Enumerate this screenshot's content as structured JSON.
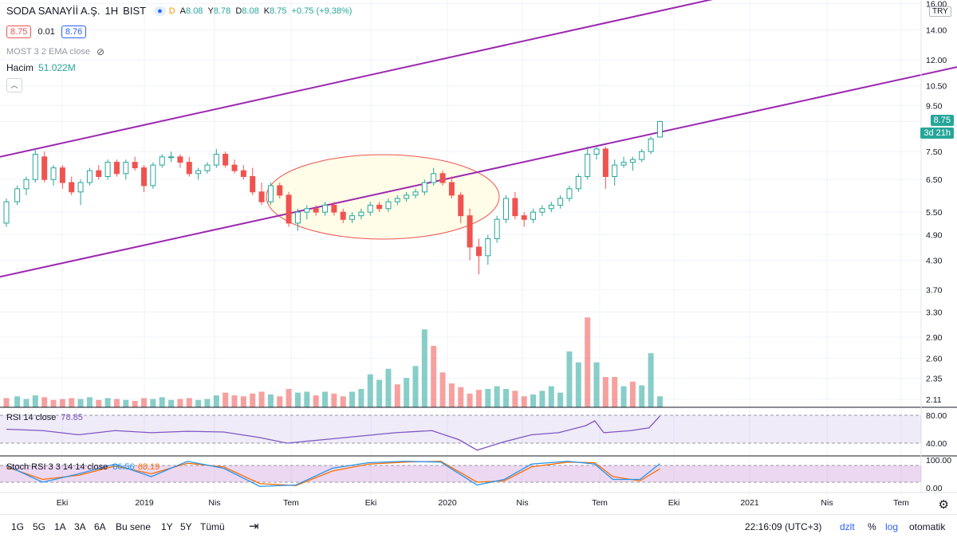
{
  "header": {
    "symbol": "SODA SANAYİİ A.Ş.",
    "interval": "1H",
    "exchange": "BIST",
    "delayed_badge": "D",
    "ohlc": {
      "o_label": "A",
      "o": "8.08",
      "h_label": "Y",
      "h": "8.78",
      "l_label": "D",
      "l": "8.08",
      "c_label": "K",
      "c": "8.75",
      "change": "+0.75 (+9.38%)"
    },
    "bid": "8.75",
    "spread": "0.01",
    "ask": "8.76",
    "indicator_most": "MOST 3 2 EMA close",
    "volume_label": "Hacim",
    "volume_value": "51.022M",
    "currency": "TRY"
  },
  "price_tags": {
    "last": "8.75",
    "countdown": "3d 21h"
  },
  "rsi": {
    "label": "RSI 14 close",
    "value": "78.85",
    "ticks": [
      "80.00",
      "40.00"
    ]
  },
  "stoch": {
    "label": "Stoch RSI 3 3 14 14 close",
    "k": "86.56",
    "d": "68.19",
    "ticks": [
      "100.00",
      "0.00"
    ]
  },
  "bottom": {
    "ranges": [
      "1G",
      "5G",
      "1A",
      "3A",
      "6A",
      "Bu sene",
      "1Y",
      "5Y",
      "Tümü"
    ],
    "clock": "22:16:09 (UTC+3)",
    "adjust": "dzlt",
    "percent": "%",
    "log": "log",
    "auto": "otomatik"
  },
  "colors": {
    "up": "#26a69a",
    "down": "#ef5350",
    "channel": "#9c27b0",
    "rsi": "#7e57c2",
    "stochK": "#2196f3",
    "stochD": "#ff6d00",
    "ellipse_fill": "#fffde7",
    "ellipse_stroke": "#ef5350"
  },
  "chart_data": {
    "type": "candlestick",
    "scale": "log",
    "y_ticks": [
      16.0,
      14.0,
      12.0,
      10.5,
      9.5,
      8.75,
      7.5,
      6.5,
      5.5,
      4.9,
      4.3,
      3.7,
      3.3,
      2.9,
      2.6,
      2.35,
      2.11
    ],
    "y_tick_labels": [
      "16.00",
      "14.00",
      "12.00",
      "10.50",
      "9.50",
      "8.75",
      "7.50",
      "6.50",
      "5.50",
      "4.90",
      "4.30",
      "3.70",
      "3.30",
      "2.90",
      "2.60",
      "2.35",
      "2.11"
    ],
    "x_labels": [
      "Eki",
      "2019",
      "Nis",
      "Tem",
      "Eki",
      "2020",
      "Nis",
      "Tem",
      "Eki",
      "2021",
      "Nis",
      "Tem"
    ],
    "x_label_pos": [
      0.0,
      1.0,
      2.0,
      3.0,
      4.0,
      5.0,
      6.0,
      7.0,
      8.0,
      9.0,
      10.0,
      11.0
    ],
    "candles": [
      [
        0,
        5.2,
        5.9,
        5.1,
        5.8
      ],
      [
        0.12,
        5.8,
        6.3,
        5.7,
        6.2
      ],
      [
        0.22,
        6.2,
        6.6,
        6.0,
        6.5
      ],
      [
        0.32,
        6.5,
        7.6,
        6.4,
        7.4
      ],
      [
        0.42,
        7.3,
        7.5,
        6.4,
        6.5
      ],
      [
        0.52,
        6.5,
        7.0,
        6.3,
        6.9
      ],
      [
        0.62,
        6.9,
        7.0,
        6.2,
        6.4
      ],
      [
        0.72,
        6.4,
        6.6,
        6.0,
        6.1
      ],
      [
        0.82,
        6.1,
        6.5,
        5.7,
        6.4
      ],
      [
        0.92,
        6.4,
        6.9,
        6.3,
        6.8
      ],
      [
        1.02,
        6.8,
        7.0,
        6.5,
        6.6
      ],
      [
        1.12,
        6.6,
        7.2,
        6.5,
        7.1
      ],
      [
        1.22,
        7.1,
        7.2,
        6.6,
        6.7
      ],
      [
        1.32,
        6.7,
        7.2,
        6.5,
        7.1
      ],
      [
        1.42,
        7.1,
        7.3,
        6.8,
        6.9
      ],
      [
        1.52,
        6.9,
        7.0,
        6.1,
        6.3
      ],
      [
        1.62,
        6.3,
        7.1,
        6.2,
        7.0
      ],
      [
        1.72,
        7.0,
        7.4,
        6.9,
        7.3
      ],
      [
        1.82,
        7.3,
        7.5,
        7.1,
        7.3
      ],
      [
        1.92,
        7.3,
        7.4,
        6.9,
        7.1
      ],
      [
        2.02,
        7.1,
        7.3,
        6.6,
        6.7
      ],
      [
        2.12,
        6.7,
        6.9,
        6.5,
        6.8
      ],
      [
        2.22,
        6.8,
        7.1,
        6.7,
        7.0
      ],
      [
        2.32,
        7.0,
        7.6,
        6.9,
        7.4
      ],
      [
        2.42,
        7.4,
        7.5,
        6.9,
        7.0
      ],
      [
        2.52,
        7.0,
        7.2,
        6.7,
        6.8
      ],
      [
        2.62,
        6.8,
        7.0,
        6.5,
        6.6
      ],
      [
        2.72,
        6.6,
        6.9,
        6.0,
        6.1
      ],
      [
        2.82,
        6.1,
        6.4,
        5.7,
        5.8
      ],
      [
        2.92,
        5.8,
        6.4,
        5.7,
        6.3
      ],
      [
        3.02,
        6.3,
        6.4,
        5.9,
        6.0
      ],
      [
        3.12,
        6.0,
        6.1,
        5.1,
        5.2
      ],
      [
        3.22,
        5.2,
        5.6,
        5.0,
        5.5
      ],
      [
        3.32,
        5.5,
        5.7,
        5.3,
        5.6
      ],
      [
        3.42,
        5.6,
        5.7,
        5.4,
        5.5
      ],
      [
        3.52,
        5.5,
        5.8,
        5.4,
        5.7
      ],
      [
        3.62,
        5.7,
        5.8,
        5.4,
        5.5
      ],
      [
        3.72,
        5.5,
        5.6,
        5.2,
        5.3
      ],
      [
        3.82,
        5.3,
        5.5,
        5.2,
        5.4
      ],
      [
        3.92,
        5.4,
        5.6,
        5.3,
        5.5
      ],
      [
        4.02,
        5.5,
        5.8,
        5.4,
        5.7
      ],
      [
        4.12,
        5.7,
        5.8,
        5.5,
        5.6
      ],
      [
        4.22,
        5.6,
        5.9,
        5.5,
        5.8
      ],
      [
        4.32,
        5.8,
        6.0,
        5.7,
        5.9
      ],
      [
        4.42,
        5.9,
        6.1,
        5.8,
        6.0
      ],
      [
        4.52,
        6.0,
        6.2,
        5.9,
        6.1
      ],
      [
        4.62,
        6.1,
        6.5,
        6.0,
        6.4
      ],
      [
        4.72,
        6.4,
        6.9,
        6.3,
        6.7
      ],
      [
        4.82,
        6.7,
        6.8,
        6.3,
        6.4
      ],
      [
        4.92,
        6.4,
        6.6,
        5.9,
        6.0
      ],
      [
        5.02,
        6.0,
        6.1,
        5.2,
        5.4
      ],
      [
        5.12,
        5.4,
        5.6,
        4.3,
        4.6
      ],
      [
        5.22,
        4.6,
        4.8,
        4.0,
        4.4
      ],
      [
        5.32,
        4.4,
        4.9,
        4.2,
        4.8
      ],
      [
        5.42,
        4.8,
        5.4,
        4.7,
        5.3
      ],
      [
        5.52,
        5.3,
        6.0,
        5.2,
        5.9
      ],
      [
        5.62,
        5.9,
        6.1,
        5.3,
        5.4
      ],
      [
        5.72,
        5.4,
        5.5,
        5.1,
        5.3
      ],
      [
        5.82,
        5.3,
        5.6,
        5.2,
        5.5
      ],
      [
        5.92,
        5.5,
        5.7,
        5.4,
        5.6
      ],
      [
        6.02,
        5.6,
        5.8,
        5.5,
        5.7
      ],
      [
        6.12,
        5.7,
        6.0,
        5.6,
        5.9
      ],
      [
        6.22,
        5.9,
        6.3,
        5.8,
        6.2
      ],
      [
        6.32,
        6.2,
        6.7,
        6.1,
        6.6
      ],
      [
        6.42,
        6.6,
        7.7,
        6.5,
        7.4
      ],
      [
        6.52,
        7.4,
        7.7,
        7.2,
        7.6
      ],
      [
        6.62,
        7.6,
        7.7,
        6.2,
        6.6
      ],
      [
        6.72,
        6.6,
        7.2,
        6.3,
        7.0
      ],
      [
        6.82,
        7.0,
        7.3,
        6.9,
        7.1
      ],
      [
        6.92,
        7.1,
        7.3,
        6.8,
        7.2
      ],
      [
        7.02,
        7.2,
        7.6,
        7.1,
        7.5
      ],
      [
        7.12,
        7.5,
        8.1,
        7.4,
        8.0
      ],
      [
        7.22,
        8.08,
        8.78,
        8.08,
        8.75
      ]
    ],
    "volume": [
      [
        0,
        1.0,
        "down"
      ],
      [
        0.12,
        1.2,
        "up"
      ],
      [
        0.22,
        0.9,
        "up"
      ],
      [
        0.32,
        1.3,
        "up"
      ],
      [
        0.42,
        1.1,
        "down"
      ],
      [
        0.52,
        0.8,
        "down"
      ],
      [
        0.62,
        0.9,
        "down"
      ],
      [
        0.72,
        1.0,
        "down"
      ],
      [
        0.82,
        0.9,
        "up"
      ],
      [
        0.92,
        1.1,
        "up"
      ],
      [
        1.02,
        0.8,
        "down"
      ],
      [
        1.12,
        1.0,
        "up"
      ],
      [
        1.22,
        0.9,
        "down"
      ],
      [
        1.32,
        0.8,
        "up"
      ],
      [
        1.42,
        0.7,
        "down"
      ],
      [
        1.52,
        1.0,
        "down"
      ],
      [
        1.62,
        0.9,
        "up"
      ],
      [
        1.72,
        1.1,
        "up"
      ],
      [
        1.82,
        0.8,
        "up"
      ],
      [
        1.92,
        0.9,
        "down"
      ],
      [
        2.02,
        1.0,
        "down"
      ],
      [
        2.12,
        0.8,
        "up"
      ],
      [
        2.22,
        0.9,
        "up"
      ],
      [
        2.32,
        1.3,
        "up"
      ],
      [
        2.42,
        1.6,
        "down"
      ],
      [
        2.52,
        1.3,
        "down"
      ],
      [
        2.62,
        1.2,
        "down"
      ],
      [
        2.72,
        1.5,
        "down"
      ],
      [
        2.82,
        1.7,
        "down"
      ],
      [
        2.92,
        1.4,
        "up"
      ],
      [
        3.02,
        1.2,
        "down"
      ],
      [
        3.12,
        2.0,
        "down"
      ],
      [
        3.22,
        1.6,
        "up"
      ],
      [
        3.32,
        1.7,
        "up"
      ],
      [
        3.42,
        1.3,
        "down"
      ],
      [
        3.52,
        1.7,
        "up"
      ],
      [
        3.62,
        1.5,
        "down"
      ],
      [
        3.72,
        1.2,
        "down"
      ],
      [
        3.82,
        1.7,
        "up"
      ],
      [
        3.92,
        2.0,
        "up"
      ],
      [
        4.02,
        3.6,
        "up"
      ],
      [
        4.12,
        3.0,
        "up"
      ],
      [
        4.22,
        4.2,
        "up"
      ],
      [
        4.32,
        2.5,
        "down"
      ],
      [
        4.42,
        3.2,
        "up"
      ],
      [
        4.52,
        4.5,
        "up"
      ],
      [
        4.62,
        8.5,
        "up"
      ],
      [
        4.72,
        6.7,
        "down"
      ],
      [
        4.82,
        3.8,
        "down"
      ],
      [
        4.92,
        2.6,
        "down"
      ],
      [
        5.02,
        2.2,
        "down"
      ],
      [
        5.12,
        1.5,
        "down"
      ],
      [
        5.22,
        1.9,
        "down"
      ],
      [
        5.32,
        2.0,
        "up"
      ],
      [
        5.42,
        2.3,
        "up"
      ],
      [
        5.52,
        2.0,
        "up"
      ],
      [
        5.62,
        1.8,
        "down"
      ],
      [
        5.72,
        1.2,
        "down"
      ],
      [
        5.82,
        1.4,
        "up"
      ],
      [
        5.92,
        1.8,
        "up"
      ],
      [
        6.02,
        2.3,
        "up"
      ],
      [
        6.12,
        1.6,
        "up"
      ],
      [
        6.22,
        6.1,
        "up"
      ],
      [
        6.32,
        4.9,
        "up"
      ],
      [
        6.42,
        9.8,
        "down"
      ],
      [
        6.52,
        4.9,
        "up"
      ],
      [
        6.62,
        3.3,
        "down"
      ],
      [
        6.72,
        3.3,
        "down"
      ],
      [
        6.82,
        2.3,
        "up"
      ],
      [
        6.92,
        2.8,
        "down"
      ],
      [
        7.02,
        2.4,
        "up"
      ],
      [
        7.12,
        5.9,
        "up"
      ],
      [
        7.22,
        1.2,
        "up"
      ]
    ],
    "channel_upper": [
      [
        0,
        7.3
      ],
      [
        10.3,
        18.0
      ]
    ],
    "channel_lower": [
      [
        0,
        3.95
      ],
      [
        11.9,
        11.1
      ]
    ],
    "ellipse_center": [
      3.0,
      5.95
    ],
    "rsi": [
      [
        0,
        60
      ],
      [
        0.4,
        58
      ],
      [
        0.8,
        52
      ],
      [
        1.2,
        58
      ],
      [
        1.6,
        55
      ],
      [
        2.0,
        57
      ],
      [
        2.4,
        56
      ],
      [
        2.8,
        48
      ],
      [
        3.1,
        40
      ],
      [
        3.5,
        45
      ],
      [
        3.9,
        50
      ],
      [
        4.3,
        55
      ],
      [
        4.7,
        58
      ],
      [
        5.0,
        45
      ],
      [
        5.2,
        30
      ],
      [
        5.5,
        42
      ],
      [
        5.8,
        52
      ],
      [
        6.1,
        55
      ],
      [
        6.4,
        65
      ],
      [
        6.5,
        72
      ],
      [
        6.6,
        55
      ],
      [
        6.9,
        58
      ],
      [
        7.1,
        62
      ],
      [
        7.22,
        78.85
      ]
    ],
    "stoch_k": [
      [
        0,
        80
      ],
      [
        0.4,
        20
      ],
      [
        0.8,
        50
      ],
      [
        1.2,
        85
      ],
      [
        1.6,
        40
      ],
      [
        2.0,
        95
      ],
      [
        2.4,
        70
      ],
      [
        2.8,
        5
      ],
      [
        3.2,
        10
      ],
      [
        3.6,
        70
      ],
      [
        4.0,
        90
      ],
      [
        4.4,
        95
      ],
      [
        4.8,
        92
      ],
      [
        5.2,
        10
      ],
      [
        5.5,
        30
      ],
      [
        5.8,
        85
      ],
      [
        6.2,
        95
      ],
      [
        6.5,
        85
      ],
      [
        6.7,
        30
      ],
      [
        7.0,
        30
      ],
      [
        7.22,
        86.56
      ]
    ],
    "stoch_d": [
      [
        0,
        75
      ],
      [
        0.4,
        30
      ],
      [
        0.8,
        45
      ],
      [
        1.2,
        78
      ],
      [
        1.6,
        50
      ],
      [
        2.0,
        88
      ],
      [
        2.4,
        75
      ],
      [
        2.8,
        15
      ],
      [
        3.2,
        8
      ],
      [
        3.6,
        60
      ],
      [
        4.0,
        85
      ],
      [
        4.4,
        92
      ],
      [
        4.8,
        95
      ],
      [
        5.2,
        20
      ],
      [
        5.5,
        25
      ],
      [
        5.8,
        75
      ],
      [
        6.2,
        92
      ],
      [
        6.5,
        90
      ],
      [
        6.7,
        40
      ],
      [
        7.0,
        25
      ],
      [
        7.22,
        68.19
      ]
    ]
  }
}
